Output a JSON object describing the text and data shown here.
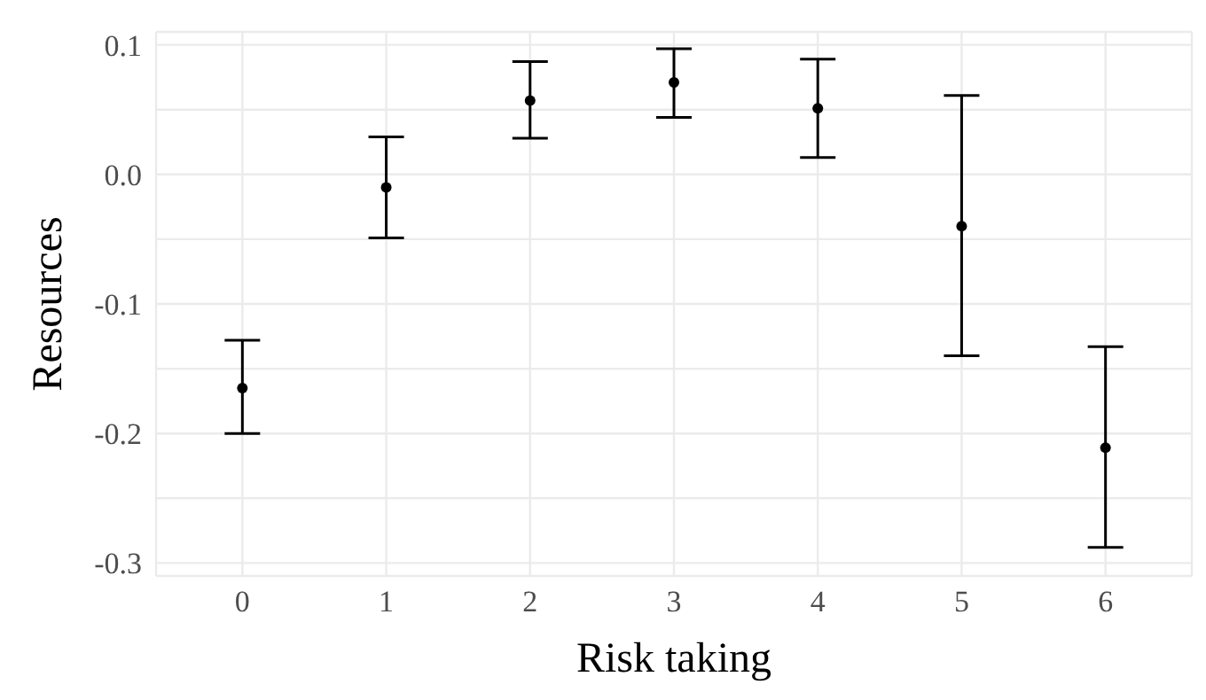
{
  "chart_data": {
    "type": "scatter",
    "xlabel": "Risk taking",
    "ylabel": "Resources",
    "x": [
      0,
      1,
      2,
      3,
      4,
      5,
      6
    ],
    "series": [
      {
        "color": "#000000",
        "values": [
          -0.165,
          -0.01,
          0.057,
          0.071,
          0.051,
          -0.04,
          -0.211
        ],
        "errors": [
          [
            -0.2,
            -0.128
          ],
          [
            -0.049,
            0.029
          ],
          [
            0.028,
            0.087
          ],
          [
            0.044,
            0.097
          ],
          [
            0.013,
            0.089
          ],
          [
            -0.14,
            0.061
          ],
          [
            -0.288,
            -0.133
          ]
        ]
      }
    ],
    "xlim": [
      -0.6,
      6.6
    ],
    "xticks": [
      0,
      1,
      2,
      3,
      4,
      5,
      6
    ],
    "ylim": [
      -0.31,
      0.11
    ],
    "yticks": [
      -0.3,
      {
        "value": -0.25,
        "label": null
      },
      -0.2,
      {
        "value": -0.15,
        "label": null
      },
      -0.1,
      {
        "value": -0.05,
        "label": null
      },
      {
        "value": 0,
        "label": "0.0"
      },
      {
        "value": 0.05,
        "label": null
      },
      0.1
    ],
    "grid": true,
    "marker": "circle",
    "legend": false
  }
}
